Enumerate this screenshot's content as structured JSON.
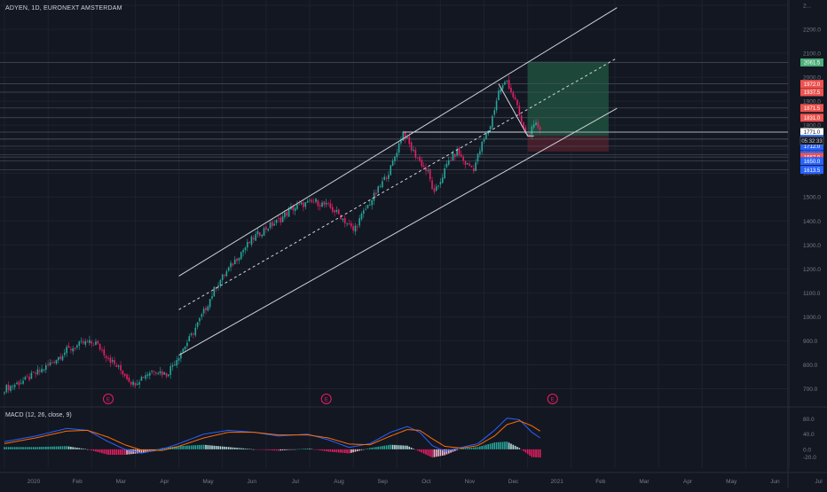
{
  "header": {
    "symbol_title": "ADYEN, 1D, EURONEXT AMSTERDAM",
    "macd_title": "MACD (12, 26, close, 9)"
  },
  "colors": {
    "background": "#131722",
    "bull": "#26a69a",
    "bear": "#e91e63",
    "line": "#d1d4dc",
    "grid": "#1e222d",
    "macd_line": "#2962ff",
    "signal_line": "#ff6d00",
    "target_zone": "#1e4d3c",
    "stop_zone": "#4a1f2a",
    "label_green": "#4caf7a",
    "label_red": "#ef5350",
    "label_blue": "#2962ff",
    "label_white": "#ffffff"
  },
  "chart_data": {
    "type": "candlestick",
    "title": "ADYEN, 1D, EURONEXT AMSTERDAM",
    "ylim": [
      650,
      2300
    ],
    "price_axis_ticks": [
      "2...",
      "2200.0",
      "2100.0",
      "2000.0",
      "1900.0",
      "1800.0",
      "1700.0",
      "1600.0",
      "1500.0",
      "1400.0",
      "1300.0",
      "1200.0",
      "1100.0",
      "1000.0",
      "900.0",
      "800.0",
      "700.0"
    ],
    "price_axis_values": [
      2300,
      2200,
      2100,
      2000,
      1900,
      1800,
      1700,
      1600,
      1500,
      1400,
      1300,
      1200,
      1100,
      1000,
      900,
      800,
      700
    ],
    "time_axis_labels": [
      "2020",
      "Feb",
      "Mar",
      "Apr",
      "May",
      "Jun",
      "Jul",
      "Aug",
      "Sep",
      "Oct",
      "Nov",
      "Dec",
      "2021",
      "Feb",
      "Mar",
      "Apr",
      "May",
      "Jun",
      "Jul"
    ],
    "time_axis_index": [
      0,
      21,
      42,
      63,
      84,
      105,
      126,
      147,
      168,
      189,
      210,
      231,
      252,
      273,
      294,
      315,
      336,
      357,
      378
    ],
    "earnings_markers": [
      50,
      155,
      264
    ],
    "earnings_label": "E",
    "price_levels": [
      {
        "value": 2061.5,
        "label": "2061.5",
        "color": "green"
      },
      {
        "value": 1972.0,
        "label": "1972.0",
        "color": "red"
      },
      {
        "value": 1937.5,
        "label": "1937.5",
        "color": "red"
      },
      {
        "value": 1871.5,
        "label": "1871.5",
        "color": "red"
      },
      {
        "value": 1831.0,
        "label": "1831.0",
        "color": "red"
      },
      {
        "value": 1771.0,
        "label": "1771.0",
        "color": "white"
      },
      {
        "value": 1742.5,
        "label": "1742.5",
        "color": "blue"
      },
      {
        "value": 1741.5,
        "label": "1741.5",
        "color": "blue"
      },
      {
        "value": 1712.0,
        "label": "1712.0",
        "color": "blue"
      },
      {
        "value": 1676.0,
        "label": "1676.0",
        "color": "blue"
      },
      {
        "value": 1667.0,
        "label": "1667.0",
        "color": "red"
      },
      {
        "value": 1650.0,
        "label": "1650.0",
        "color": "blue"
      },
      {
        "value": 1613.5,
        "label": "1613.5",
        "color": "blue"
      }
    ],
    "countdown": "05:32:33",
    "countdown_value": 1735,
    "channel": {
      "upper": [
        [
          84,
          1170
        ],
        [
          295,
          2290
        ]
      ],
      "middle": [
        [
          84,
          1030
        ],
        [
          295,
          2080
        ]
      ],
      "lower": [
        [
          84,
          840
        ],
        [
          295,
          1870
        ]
      ]
    },
    "horizontal_lines": [
      {
        "value": 1771,
        "from": 192,
        "to": 252
      }
    ],
    "triangle": [
      [
        238,
        1972
      ],
      [
        252,
        1755
      ],
      [
        255,
        1755
      ]
    ],
    "target_zone": {
      "from_index": 252,
      "to_index": 291,
      "top": 2065,
      "bottom": 1755
    },
    "stop_zone": {
      "from_index": 252,
      "to_index": 291,
      "top": 1755,
      "bottom": 1690
    },
    "path_anchors": [
      [
        0,
        700
      ],
      [
        10,
        735
      ],
      [
        20,
        790
      ],
      [
        30,
        860
      ],
      [
        38,
        890
      ],
      [
        44,
        890
      ],
      [
        52,
        810
      ],
      [
        58,
        760
      ],
      [
        62,
        720
      ],
      [
        68,
        760
      ],
      [
        72,
        780
      ],
      [
        78,
        760
      ],
      [
        84,
        840
      ],
      [
        90,
        920
      ],
      [
        96,
        1020
      ],
      [
        102,
        1130
      ],
      [
        108,
        1200
      ],
      [
        114,
        1270
      ],
      [
        120,
        1330
      ],
      [
        126,
        1370
      ],
      [
        132,
        1400
      ],
      [
        138,
        1450
      ],
      [
        144,
        1470
      ],
      [
        150,
        1480
      ],
      [
        156,
        1460
      ],
      [
        162,
        1420
      ],
      [
        168,
        1360
      ],
      [
        174,
        1450
      ],
      [
        180,
        1530
      ],
      [
        186,
        1620
      ],
      [
        192,
        1771
      ],
      [
        196,
        1700
      ],
      [
        200,
        1650
      ],
      [
        204,
        1600
      ],
      [
        207,
        1510
      ],
      [
        210,
        1570
      ],
      [
        214,
        1650
      ],
      [
        218,
        1690
      ],
      [
        222,
        1640
      ],
      [
        226,
        1620
      ],
      [
        230,
        1720
      ],
      [
        234,
        1800
      ],
      [
        238,
        1940
      ],
      [
        242,
        1985
      ],
      [
        246,
        1900
      ],
      [
        250,
        1780
      ],
      [
        252,
        1760
      ],
      [
        256,
        1800
      ],
      [
        258,
        1790
      ]
    ],
    "macd": {
      "ylim": [
        -40,
        100
      ],
      "ticks": [
        "80.0",
        "40.0",
        "0.0",
        "-20.0"
      ],
      "tick_values": [
        80,
        40,
        0,
        -20
      ],
      "macd_anchors": [
        [
          0,
          20
        ],
        [
          15,
          35
        ],
        [
          30,
          55
        ],
        [
          40,
          50
        ],
        [
          50,
          20
        ],
        [
          58,
          0
        ],
        [
          66,
          -10
        ],
        [
          76,
          0
        ],
        [
          84,
          15
        ],
        [
          96,
          40
        ],
        [
          108,
          50
        ],
        [
          120,
          45
        ],
        [
          132,
          35
        ],
        [
          146,
          40
        ],
        [
          156,
          25
        ],
        [
          166,
          5
        ],
        [
          176,
          15
        ],
        [
          186,
          45
        ],
        [
          194,
          60
        ],
        [
          200,
          45
        ],
        [
          206,
          10
        ],
        [
          212,
          -5
        ],
        [
          220,
          5
        ],
        [
          228,
          15
        ],
        [
          236,
          50
        ],
        [
          242,
          82
        ],
        [
          248,
          78
        ],
        [
          254,
          45
        ],
        [
          258,
          30
        ]
      ],
      "signal_anchors": [
        [
          0,
          15
        ],
        [
          15,
          30
        ],
        [
          30,
          48
        ],
        [
          40,
          50
        ],
        [
          50,
          32
        ],
        [
          58,
          12
        ],
        [
          66,
          -2
        ],
        [
          76,
          -3
        ],
        [
          84,
          8
        ],
        [
          96,
          30
        ],
        [
          108,
          45
        ],
        [
          120,
          45
        ],
        [
          132,
          38
        ],
        [
          146,
          38
        ],
        [
          156,
          30
        ],
        [
          166,
          14
        ],
        [
          176,
          12
        ],
        [
          186,
          35
        ],
        [
          194,
          52
        ],
        [
          200,
          50
        ],
        [
          206,
          28
        ],
        [
          212,
          8
        ],
        [
          220,
          3
        ],
        [
          228,
          10
        ],
        [
          236,
          35
        ],
        [
          242,
          65
        ],
        [
          248,
          75
        ],
        [
          254,
          62
        ],
        [
          258,
          48
        ]
      ]
    }
  }
}
